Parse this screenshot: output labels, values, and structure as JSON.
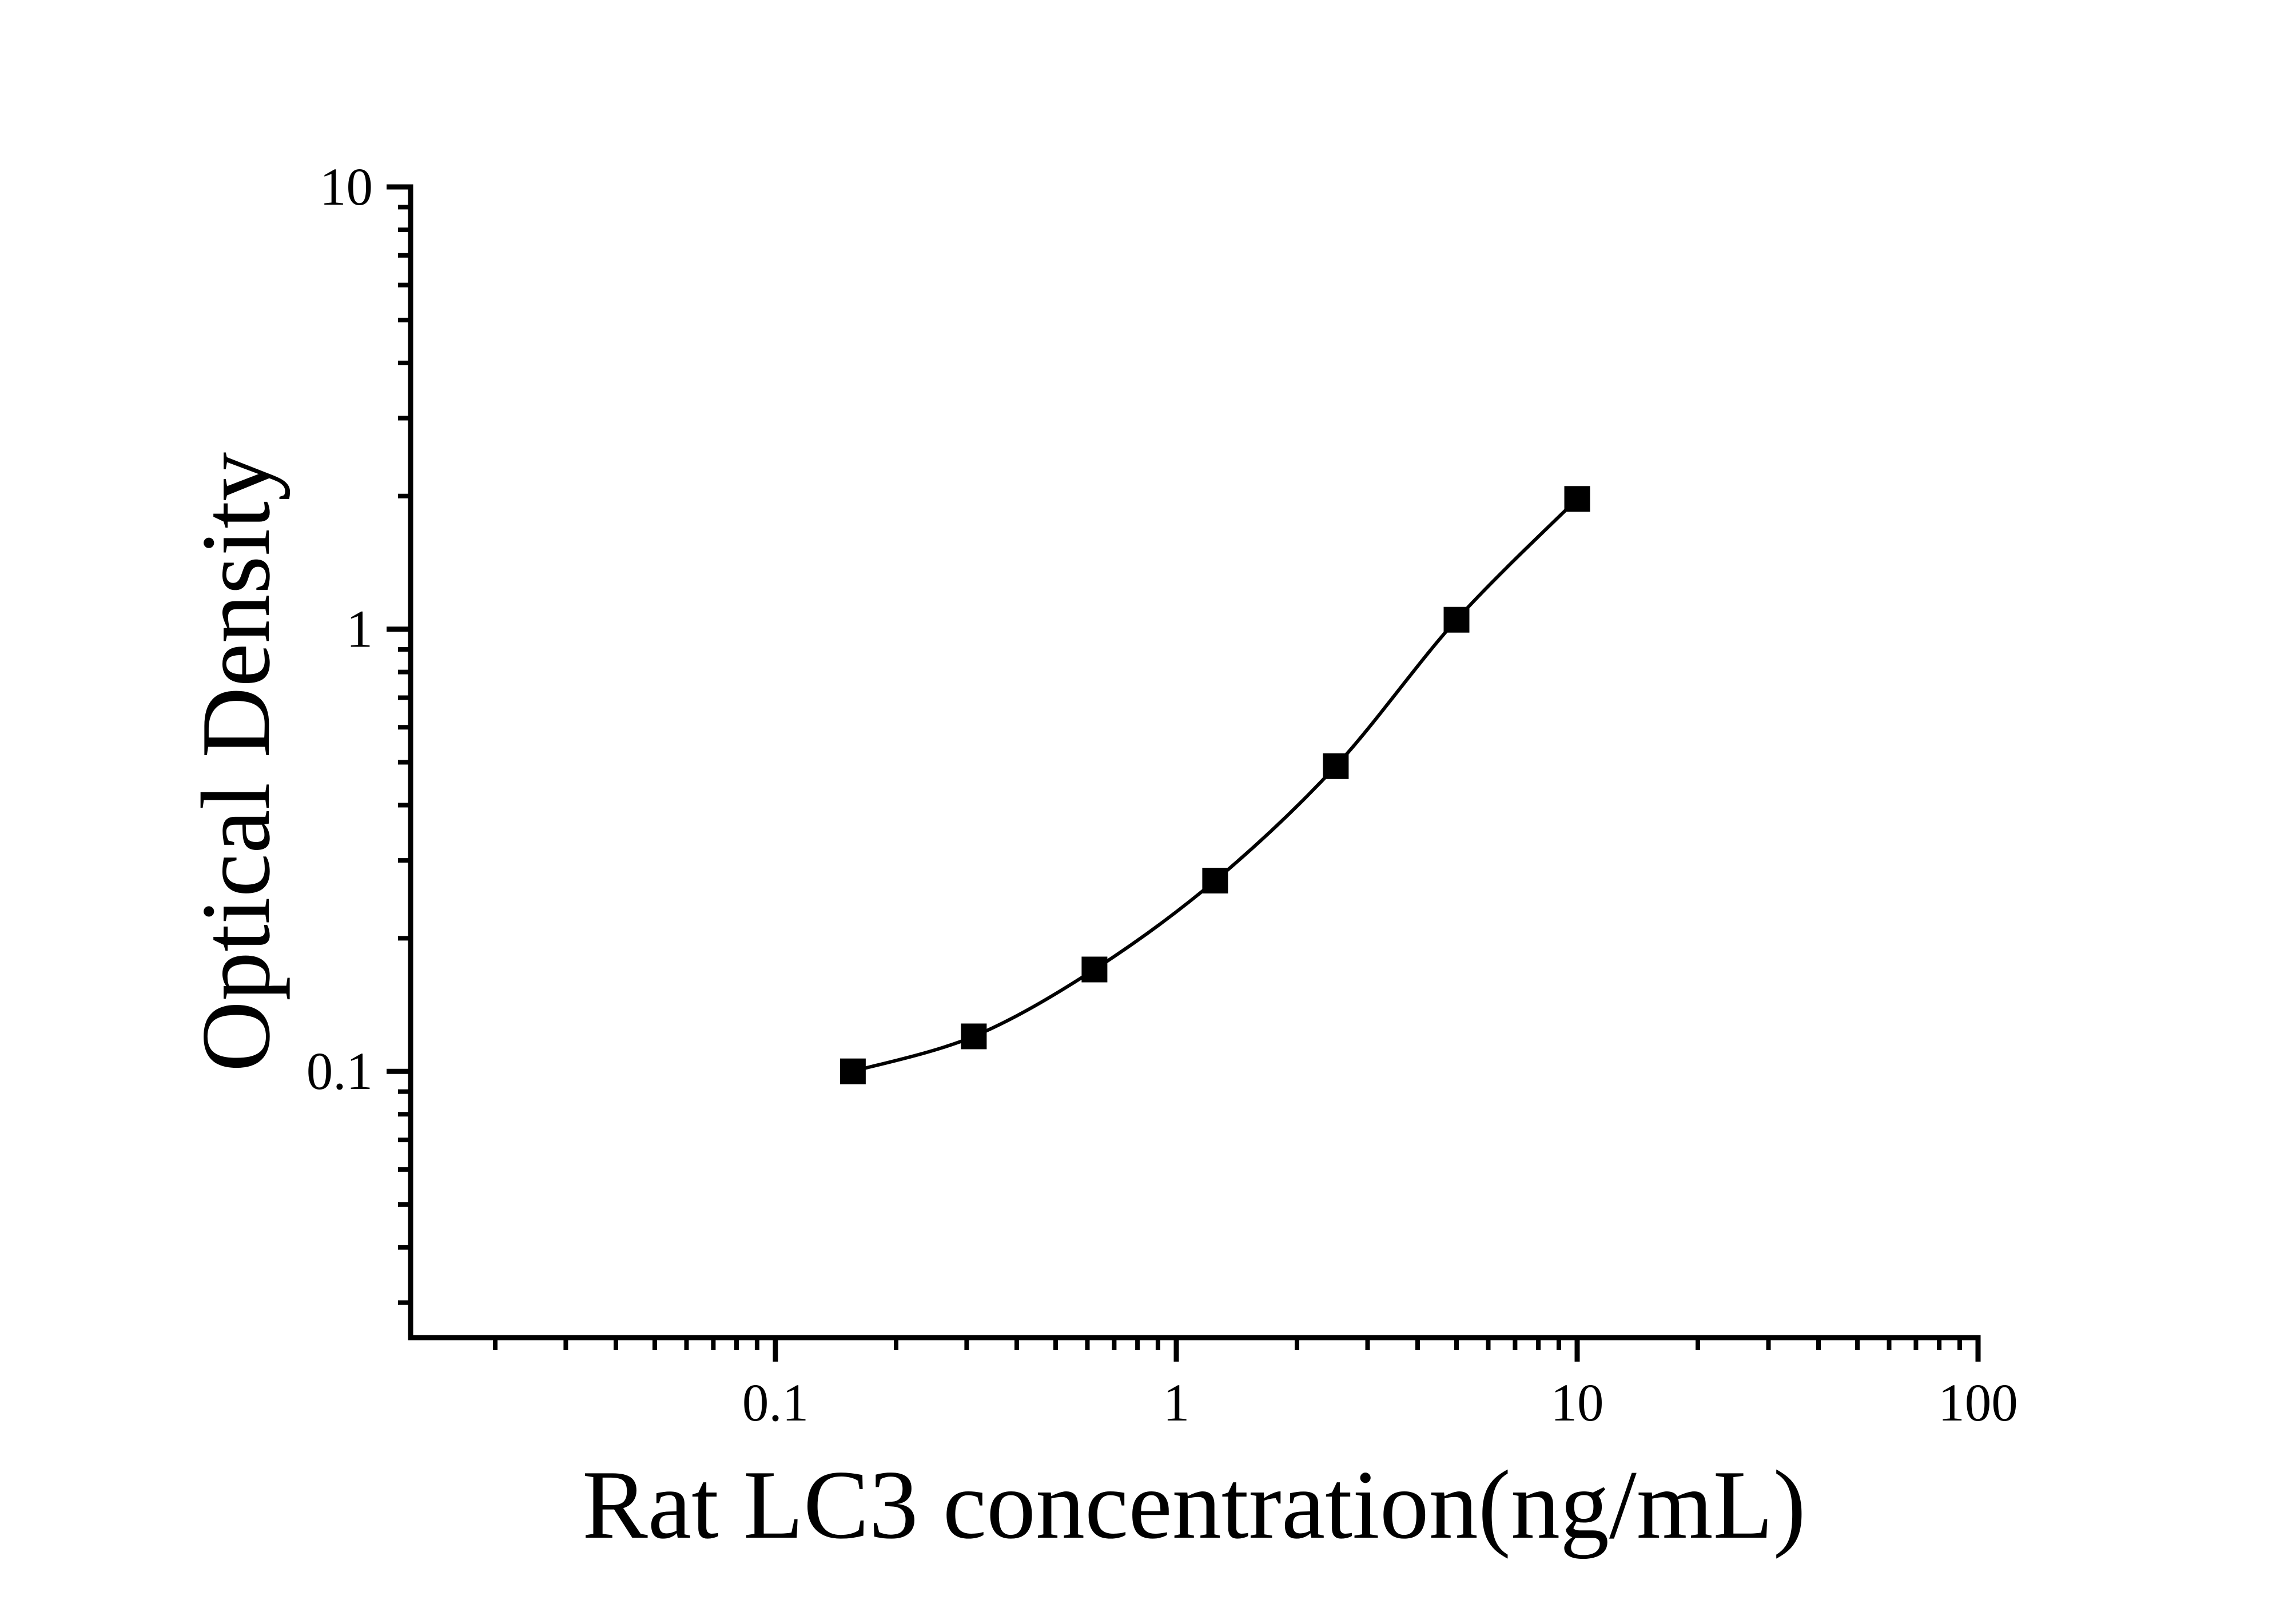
{
  "page": {
    "background_color": "#ffffff",
    "foreground_color": "#000000"
  },
  "chart_data": {
    "type": "scatter",
    "subtype": "standard-curve-with-smooth-line",
    "title": "",
    "xlabel": "Rat LC3 concentration(ng/mL)",
    "ylabel": "Optical Density",
    "x_scale": "log",
    "y_scale": "log",
    "xlim": [
      0.0123,
      100
    ],
    "ylim": [
      0.025,
      10
    ],
    "grid": false,
    "legend": false,
    "axis_color": "#000000",
    "x_major_ticks": [
      {
        "value": 0.1,
        "label": "0.1"
      },
      {
        "value": 1,
        "label": "1"
      },
      {
        "value": 10,
        "label": "10"
      },
      {
        "value": 100,
        "label": "100"
      }
    ],
    "y_major_ticks": [
      {
        "value": 10,
        "label": "10"
      },
      {
        "value": 1,
        "label": "1"
      },
      {
        "value": 0.1,
        "label": "0.1"
      }
    ],
    "minor_tick_mantissas": [
      2,
      3,
      4,
      5,
      6,
      7,
      8,
      9
    ],
    "series": [
      {
        "name": "standard-curve",
        "marker": "filled-square",
        "marker_color": "#000000",
        "line_color": "#000000",
        "x": [
          0.156,
          0.3125,
          0.625,
          1.25,
          2.5,
          5,
          10
        ],
        "y": [
          0.1,
          0.12,
          0.17,
          0.27,
          0.49,
          1.05,
          1.97
        ]
      }
    ]
  }
}
